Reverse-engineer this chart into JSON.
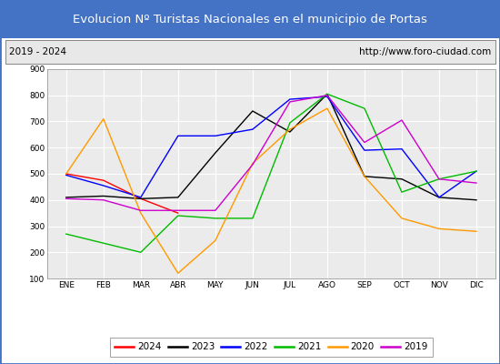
{
  "title": "Evolucion Nº Turistas Nacionales en el municipio de Portas",
  "subtitle_left": "2019 - 2024",
  "subtitle_right": "http://www.foro-ciudad.com",
  "months": [
    "ENE",
    "FEB",
    "MAR",
    "ABR",
    "MAY",
    "JUN",
    "JUL",
    "AGO",
    "SEP",
    "OCT",
    "NOV",
    "DIC"
  ],
  "ylim": [
    100,
    900
  ],
  "yticks": [
    100,
    200,
    300,
    400,
    500,
    600,
    700,
    800,
    900
  ],
  "series": {
    "2024": {
      "color": "#ff0000",
      "values": [
        500,
        475,
        405,
        350,
        null,
        null,
        null,
        null,
        null,
        null,
        null,
        null
      ]
    },
    "2023": {
      "color": "#000000",
      "values": [
        410,
        415,
        405,
        410,
        580,
        740,
        660,
        805,
        490,
        480,
        410,
        400
      ]
    },
    "2022": {
      "color": "#0000ff",
      "values": [
        495,
        455,
        410,
        645,
        645,
        670,
        785,
        795,
        590,
        595,
        410,
        510
      ]
    },
    "2021": {
      "color": "#00bb00",
      "values": [
        270,
        235,
        200,
        340,
        330,
        330,
        695,
        805,
        750,
        430,
        480,
        510
      ]
    },
    "2020": {
      "color": "#ff9900",
      "values": [
        500,
        710,
        350,
        120,
        245,
        540,
        670,
        750,
        490,
        330,
        290,
        280
      ]
    },
    "2019": {
      "color": "#cc00cc",
      "values": [
        405,
        400,
        360,
        360,
        360,
        535,
        775,
        800,
        620,
        705,
        480,
        465
      ]
    }
  },
  "legend_order": [
    "2024",
    "2023",
    "2022",
    "2021",
    "2020",
    "2019"
  ],
  "title_bg_color": "#4472c4",
  "title_text_color": "#ffffff",
  "subtitle_bg_color": "#e8e8e8",
  "plot_bg_color": "#ebebeb",
  "grid_color": "#ffffff",
  "fig_bg_color": "#ffffff",
  "outer_border_color": "#4472c4"
}
